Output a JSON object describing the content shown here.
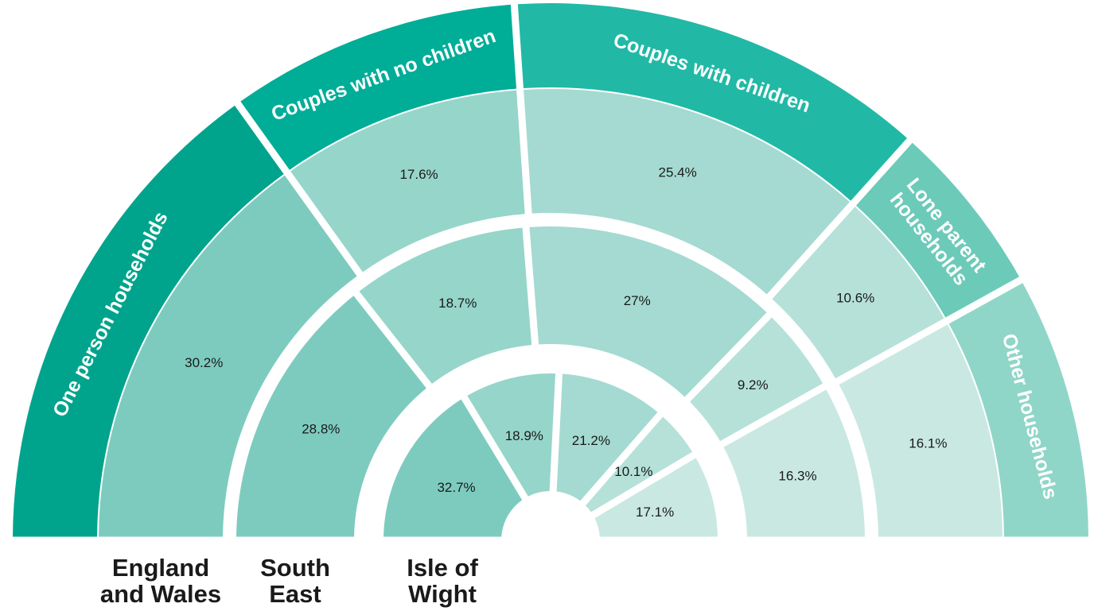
{
  "chart_data": {
    "type": "pie",
    "subtype": "semicircular-sunburst",
    "categories": [
      "One person households",
      "Couples with no children",
      "Couples with children",
      "Lone parent households",
      "Other households"
    ],
    "colors": [
      "#00a48c",
      "#00ad97",
      "#21b9a6",
      "#6ccab9",
      "#8fd6c8"
    ],
    "series": [
      {
        "name": "England and Wales",
        "name_lines": [
          "England",
          "and Wales"
        ],
        "values": [
          30.2,
          17.6,
          25.4,
          10.6,
          16.1
        ]
      },
      {
        "name": "South East",
        "name_lines": [
          "South",
          "East"
        ],
        "values": [
          28.8,
          18.7,
          27,
          9.2,
          16.3
        ]
      },
      {
        "name": "Isle of Wight",
        "name_lines": [
          "Isle of",
          "Wight"
        ],
        "values": [
          32.7,
          18.9,
          21.2,
          10.1,
          17.1
        ]
      }
    ],
    "value_labels": [
      [
        "30.2%",
        "17.6%",
        "25.4%",
        "10.6%",
        "16.1%"
      ],
      [
        "28.8%",
        "18.7%",
        "27%",
        "9.2%",
        "16.3%"
      ],
      [
        "32.7%",
        "18.9%",
        "21.2%",
        "10.1%",
        "17.1%"
      ]
    ],
    "segment_colors": [
      "#7dcbbf",
      "#96d5ca",
      "#a4dad1",
      "#b5e1d9",
      "#c9e8e2"
    ],
    "category_label_lines": [
      [
        "One person households"
      ],
      [
        "Couples with no children"
      ],
      [
        "Couples with children"
      ],
      [
        "Lone parent",
        "households"
      ],
      [
        "Other households"
      ]
    ]
  }
}
